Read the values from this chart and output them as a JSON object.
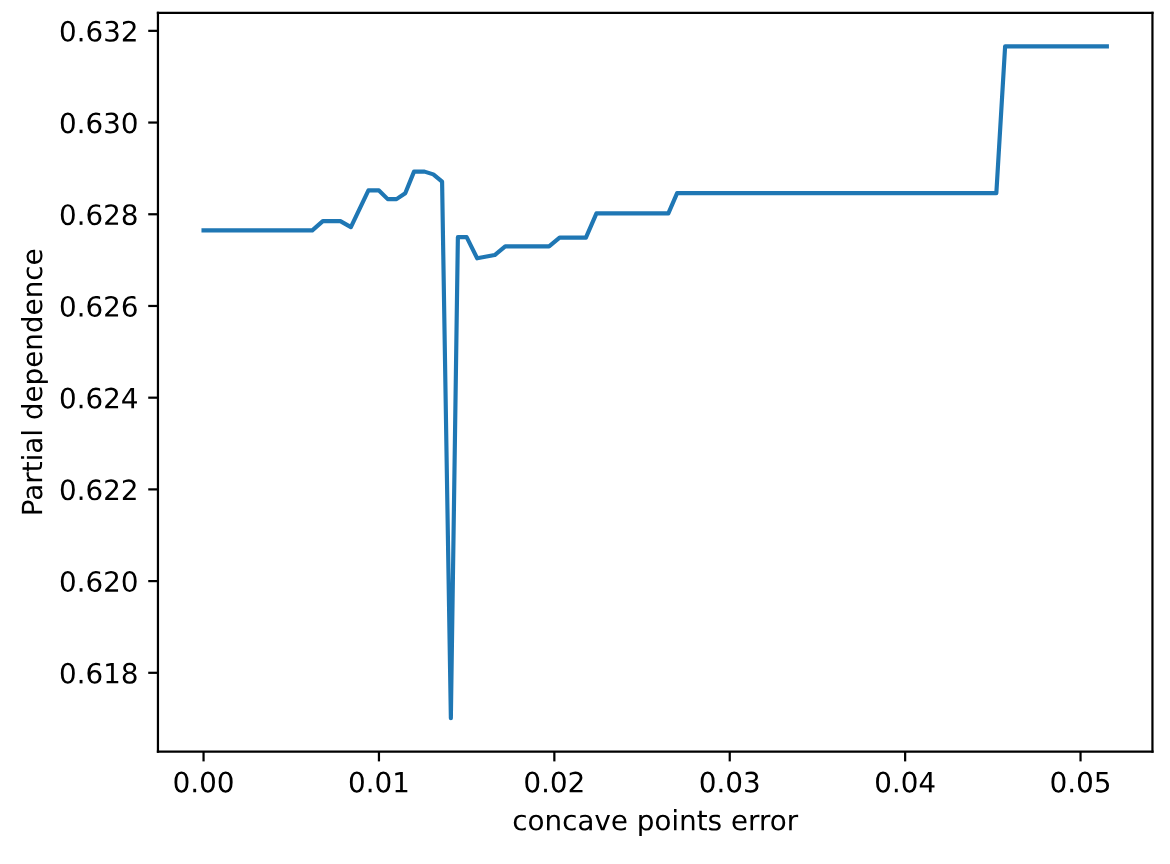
{
  "chart_data": {
    "type": "line",
    "xlabel": "concave points error",
    "ylabel": "Partial dependence",
    "x": [
      0.0,
      0.0062,
      0.0068,
      0.0078,
      0.0084,
      0.0094,
      0.01,
      0.0105,
      0.011,
      0.0115,
      0.012,
      0.0126,
      0.0131,
      0.0136,
      0.0141,
      0.0145,
      0.015,
      0.0156,
      0.0166,
      0.0172,
      0.0197,
      0.0203,
      0.0218,
      0.0224,
      0.0265,
      0.027,
      0.0452,
      0.0457,
      0.0515
    ],
    "series": [
      {
        "color": "#1f77b4",
        "values": [
          0.62765,
          0.62765,
          0.62785,
          0.62785,
          0.62772,
          0.62852,
          0.62852,
          0.62833,
          0.62833,
          0.62846,
          0.62893,
          0.62893,
          0.62887,
          0.62871,
          0.61701,
          0.6275,
          0.6275,
          0.62704,
          0.62711,
          0.6273,
          0.6273,
          0.62749,
          0.62749,
          0.62802,
          0.62802,
          0.62846,
          0.62846,
          0.63166,
          0.63166
        ]
      }
    ],
    "xlim": [
      -0.0026,
      0.0541
    ],
    "ylim": [
      0.61628,
      0.63239
    ],
    "xticks": [
      {
        "value": 0.0,
        "label": "0.00"
      },
      {
        "value": 0.01,
        "label": "0.01"
      },
      {
        "value": 0.02,
        "label": "0.02"
      },
      {
        "value": 0.03,
        "label": "0.03"
      },
      {
        "value": 0.04,
        "label": "0.04"
      },
      {
        "value": 0.05,
        "label": "0.05"
      }
    ],
    "yticks": [
      {
        "value": 0.618,
        "label": "0.618"
      },
      {
        "value": 0.62,
        "label": "0.620"
      },
      {
        "value": 0.622,
        "label": "0.622"
      },
      {
        "value": 0.624,
        "label": "0.624"
      },
      {
        "value": 0.626,
        "label": "0.626"
      },
      {
        "value": 0.628,
        "label": "0.628"
      },
      {
        "value": 0.63,
        "label": "0.630"
      },
      {
        "value": 0.632,
        "label": "0.632"
      }
    ],
    "grid": false,
    "legend": false
  }
}
